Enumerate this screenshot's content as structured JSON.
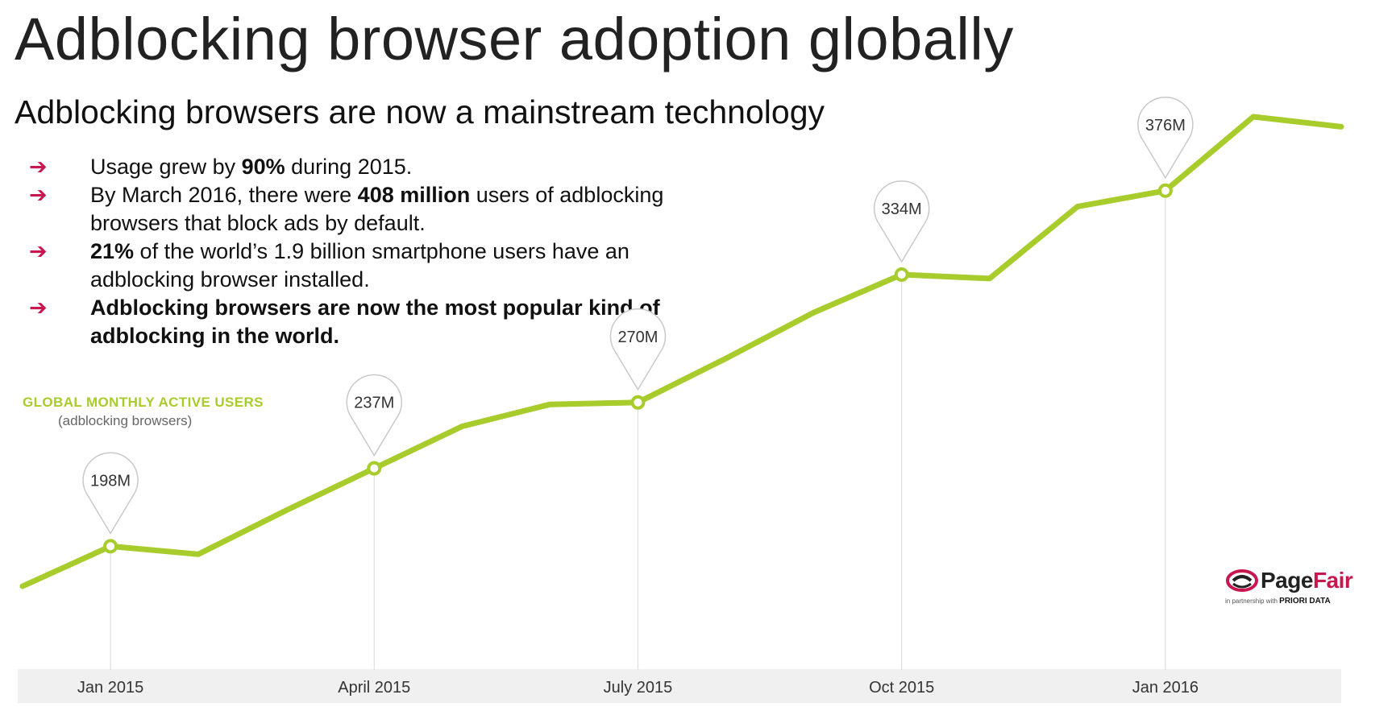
{
  "header": {
    "title": "Adblocking browser adoption globally",
    "subtitle": "Adblocking browsers are now a mainstream technology"
  },
  "bullets": [
    {
      "parts": [
        {
          "t": "Usage grew by ",
          "b": false
        },
        {
          "t": "90%",
          "b": true
        },
        {
          "t": " during 2015.",
          "b": false
        }
      ]
    },
    {
      "parts": [
        {
          "t": "By March 2016, there were ",
          "b": false
        },
        {
          "t": "408 million",
          "b": true
        },
        {
          "t": " users of adblocking browsers that block ads by default.",
          "b": false
        }
      ]
    },
    {
      "parts": [
        {
          "t": "21%",
          "b": true
        },
        {
          "t": " of the world’s 1.9 billion smartphone users have an adblocking browser installed.",
          "b": false
        }
      ]
    },
    {
      "parts": [
        {
          "t": "Adblocking browsers are now the most popular kind of adblocking in the world.",
          "b": true
        }
      ]
    }
  ],
  "bullet_arrow": "➔",
  "chart_label": {
    "title": "GLOBAL MONTHLY ACTIVE USERS",
    "subtitle": "(adblocking browsers)"
  },
  "logo": {
    "name_part1": "Page",
    "name_part2": "Fair",
    "partner_prefix": "in partnership with",
    "partner_name": "PRIORI DATA"
  },
  "colors": {
    "line": "#a9cc2d",
    "arrow": "#c8174f",
    "callout_stroke": "#c9c9c9",
    "axis_band": "#f0f0f0"
  },
  "chart_data": {
    "type": "line",
    "series": [
      {
        "name": "GLOBAL MONTHLY ACTIVE USERS",
        "x": [
          "Dec 2014",
          "Jan 2015",
          "Feb 2015",
          "Mar 2015",
          "Apr 2015",
          "May 2015",
          "Jun 2015",
          "Jul 2015",
          "Aug 2015",
          "Sep 2015",
          "Oct 2015",
          "Nov 2015",
          "Dec 2015",
          "Jan 2016",
          "Feb 2016",
          "Mar 2016"
        ],
        "values": [
          178,
          198,
          194,
          216,
          237,
          258,
          269,
          270,
          292,
          315,
          334,
          332,
          368,
          376,
          413,
          408
        ]
      }
    ],
    "callouts": [
      {
        "x": "Jan 2015",
        "value": 198,
        "label": "198M"
      },
      {
        "x": "Apr 2015",
        "value": 237,
        "label": "237M"
      },
      {
        "x": "Jul 2015",
        "value": 270,
        "label": "270M"
      },
      {
        "x": "Oct 2015",
        "value": 334,
        "label": "334M"
      },
      {
        "x": "Jan 2016",
        "value": 376,
        "label": "376M"
      }
    ],
    "x_ticks": [
      {
        "x": "Jan 2015",
        "label": "Jan 2015"
      },
      {
        "x": "Apr 2015",
        "label": "April 2015"
      },
      {
        "x": "Jul 2015",
        "label": "July 2015"
      },
      {
        "x": "Oct 2015",
        "label": "Oct 2015"
      },
      {
        "x": "Jan 2016",
        "label": "Jan 2016"
      }
    ],
    "ylim": [
      178,
      413
    ],
    "grid": false
  }
}
